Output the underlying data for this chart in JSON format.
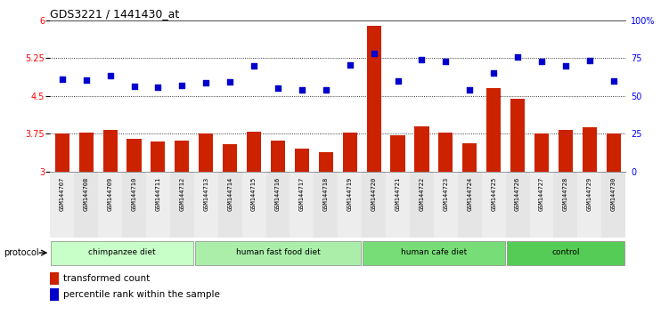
{
  "title": "GDS3221 / 1441430_at",
  "samples": [
    "GSM144707",
    "GSM144708",
    "GSM144709",
    "GSM144710",
    "GSM144711",
    "GSM144712",
    "GSM144713",
    "GSM144714",
    "GSM144715",
    "GSM144716",
    "GSM144717",
    "GSM144718",
    "GSM144719",
    "GSM144720",
    "GSM144721",
    "GSM144722",
    "GSM144723",
    "GSM144724",
    "GSM144725",
    "GSM144726",
    "GSM144727",
    "GSM144728",
    "GSM144729",
    "GSM144730"
  ],
  "bar_values": [
    3.76,
    3.78,
    3.82,
    3.65,
    3.6,
    3.62,
    3.75,
    3.55,
    3.8,
    3.62,
    3.45,
    3.38,
    3.78,
    5.9,
    3.73,
    3.9,
    3.77,
    3.57,
    4.65,
    4.45,
    3.75,
    3.83,
    3.88,
    3.75
  ],
  "dot_values": [
    4.83,
    4.82,
    4.9,
    4.7,
    4.68,
    4.72,
    4.77,
    4.79,
    5.1,
    4.65,
    4.62,
    4.62,
    5.12,
    5.35,
    4.8,
    5.22,
    5.18,
    4.63,
    4.95,
    5.28,
    5.18,
    5.1,
    5.2,
    4.8
  ],
  "groups": [
    {
      "label": "chimpanzee diet",
      "start": 0,
      "end": 6,
      "color": "#c8ffc8"
    },
    {
      "label": "human fast food diet",
      "start": 6,
      "end": 13,
      "color": "#aaeeaa"
    },
    {
      "label": "human cafe diet",
      "start": 13,
      "end": 19,
      "color": "#77dd77"
    },
    {
      "label": "control",
      "start": 19,
      "end": 24,
      "color": "#55cc55"
    }
  ],
  "bar_color": "#cc2200",
  "dot_color": "#0000cc",
  "ylim_left": [
    3.0,
    6.0
  ],
  "ylim_right": [
    0,
    100
  ],
  "yticks_left": [
    3.0,
    3.75,
    4.5,
    5.25,
    6.0
  ],
  "ytick_labels_left": [
    "3",
    "3.75",
    "4.5",
    "5.25",
    "6"
  ],
  "yticks_right": [
    0,
    25,
    50,
    75,
    100
  ],
  "ytick_labels_right": [
    "0",
    "25",
    "50",
    "75",
    "100%"
  ],
  "hlines": [
    3.75,
    4.5,
    5.25
  ],
  "title_fontsize": 9,
  "xticklabel_bg": "#dddddd"
}
